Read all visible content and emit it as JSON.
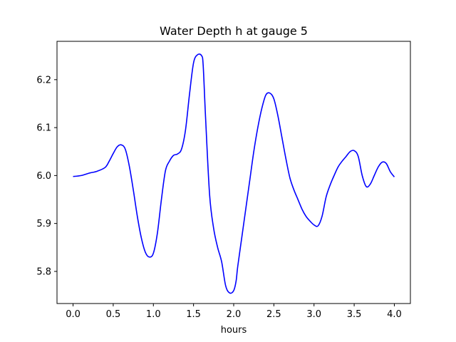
{
  "chart_data": {
    "type": "line",
    "title": "Water Depth h at gauge 5",
    "xlabel": "hours",
    "ylabel": "",
    "xlim": [
      -0.2,
      4.2
    ],
    "ylim": [
      5.733,
      6.28
    ],
    "xticks": [
      "0.0",
      "0.5",
      "1.0",
      "1.5",
      "2.0",
      "2.5",
      "3.0",
      "3.5",
      "4.0"
    ],
    "yticks": [
      "5.8",
      "5.9",
      "6.0",
      "6.1",
      "6.2"
    ],
    "grid": false,
    "legend": "none",
    "series": [
      {
        "color": "#0000ff",
        "x": [
          0.0,
          0.1,
          0.2,
          0.3,
          0.4,
          0.45,
          0.5,
          0.55,
          0.6,
          0.65,
          0.7,
          0.75,
          0.8,
          0.85,
          0.9,
          0.95,
          1.0,
          1.05,
          1.1,
          1.15,
          1.2,
          1.25,
          1.3,
          1.35,
          1.4,
          1.45,
          1.5,
          1.55,
          1.6,
          1.62,
          1.65,
          1.7,
          1.75,
          1.8,
          1.85,
          1.9,
          1.95,
          2.0,
          2.03,
          2.05,
          2.1,
          2.15,
          2.2,
          2.25,
          2.3,
          2.35,
          2.4,
          2.45,
          2.5,
          2.55,
          2.6,
          2.65,
          2.7,
          2.75,
          2.8,
          2.85,
          2.9,
          2.95,
          3.0,
          3.05,
          3.1,
          3.15,
          3.2,
          3.25,
          3.3,
          3.35,
          3.4,
          3.45,
          3.5,
          3.55,
          3.6,
          3.65,
          3.7,
          3.75,
          3.8,
          3.85,
          3.9,
          3.95,
          4.0
        ],
        "y": [
          5.998,
          6.0,
          6.005,
          6.009,
          6.017,
          6.03,
          6.046,
          6.06,
          6.064,
          6.055,
          6.02,
          5.97,
          5.915,
          5.87,
          5.84,
          5.83,
          5.838,
          5.88,
          5.95,
          6.01,
          6.03,
          6.042,
          6.045,
          6.055,
          6.095,
          6.17,
          6.235,
          6.252,
          6.25,
          6.23,
          6.12,
          5.96,
          5.89,
          5.85,
          5.82,
          5.77,
          5.755,
          5.76,
          5.78,
          5.81,
          5.87,
          5.93,
          5.99,
          6.05,
          6.1,
          6.14,
          6.168,
          6.172,
          6.16,
          6.125,
          6.08,
          6.035,
          5.995,
          5.97,
          5.95,
          5.93,
          5.915,
          5.905,
          5.897,
          5.895,
          5.915,
          5.955,
          5.98,
          6.0,
          6.018,
          6.03,
          6.04,
          6.05,
          6.052,
          6.04,
          6.0,
          5.977,
          5.982,
          6.0,
          6.018,
          6.028,
          6.025,
          6.008,
          5.997
        ]
      }
    ]
  }
}
